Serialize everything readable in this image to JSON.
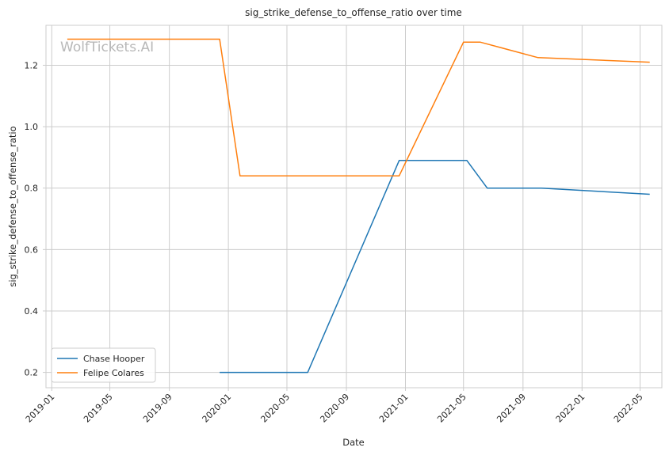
{
  "chart_data": {
    "type": "line",
    "title": "sig_strike_defense_to_offense_ratio over time",
    "xlabel": "Date",
    "ylabel": "sig_strike_defense_to_offense_ratio",
    "watermark": "WolfTickets.AI",
    "xlim": [
      "2018-12-20",
      "2022-06-15"
    ],
    "ylim": [
      0.15,
      1.33
    ],
    "x_ticks": [
      "2019-01",
      "2019-05",
      "2019-09",
      "2020-01",
      "2020-05",
      "2020-09",
      "2021-01",
      "2021-05",
      "2021-09",
      "2022-01",
      "2022-05"
    ],
    "y_ticks": [
      "0.2",
      "0.4",
      "0.6",
      "0.8",
      "1.0",
      "1.2"
    ],
    "grid": true,
    "legend_position": "lower-left",
    "series": [
      {
        "name": "Chase Hooper",
        "color": "#1f77b4",
        "points": [
          {
            "x": "2019-12-14",
            "y": 0.2
          },
          {
            "x": "2020-06-13",
            "y": 0.2
          },
          {
            "x": "2020-12-19",
            "y": 0.89
          },
          {
            "x": "2021-05-08",
            "y": 0.89
          },
          {
            "x": "2021-06-19",
            "y": 0.8
          },
          {
            "x": "2021-10-09",
            "y": 0.8
          },
          {
            "x": "2022-05-21",
            "y": 0.78
          }
        ]
      },
      {
        "name": "Felipe Colares",
        "color": "#ff7f0e",
        "points": [
          {
            "x": "2019-02-02",
            "y": 1.285
          },
          {
            "x": "2019-12-14",
            "y": 1.285
          },
          {
            "x": "2020-01-25",
            "y": 0.84
          },
          {
            "x": "2020-12-19",
            "y": 0.84
          },
          {
            "x": "2021-05-01",
            "y": 1.275
          },
          {
            "x": "2021-06-05",
            "y": 1.275
          },
          {
            "x": "2021-10-02",
            "y": 1.225
          },
          {
            "x": "2022-05-21",
            "y": 1.21
          }
        ]
      }
    ]
  }
}
